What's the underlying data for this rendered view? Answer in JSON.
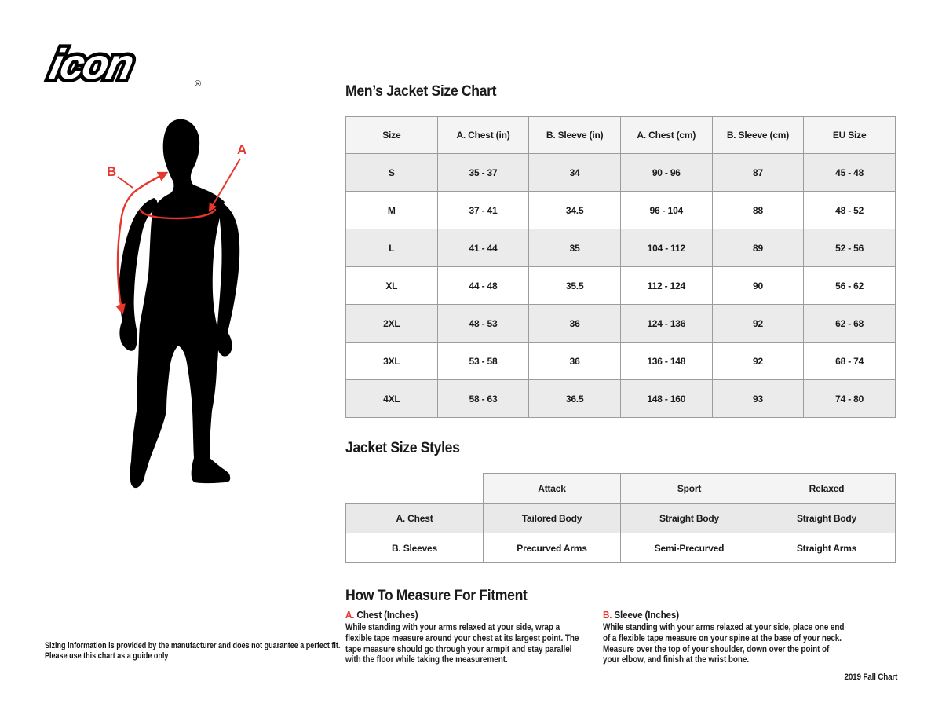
{
  "branding": {
    "logo_text": "icon",
    "registered_mark": "®"
  },
  "figure": {
    "label_a": "A",
    "label_b": "B",
    "silhouette_color": "#000000",
    "measure_line_color": "#e8362c"
  },
  "size_chart": {
    "title": "Men’s Jacket Size Chart",
    "columns": [
      "Size",
      "A. Chest (in)",
      "B. Sleeve (in)",
      "A. Chest (cm)",
      "B. Sleeve (cm)",
      "EU Size"
    ],
    "rows": [
      [
        "S",
        "35 - 37",
        "34",
        "90 - 96",
        "87",
        "45 - 48"
      ],
      [
        "M",
        "37 - 41",
        "34.5",
        "96 - 104",
        "88",
        "48 - 52"
      ],
      [
        "L",
        "41 - 44",
        "35",
        "104 - 112",
        "89",
        "52 - 56"
      ],
      [
        "XL",
        "44 - 48",
        "35.5",
        "112 - 124",
        "90",
        "56 - 62"
      ],
      [
        "2XL",
        "48 - 53",
        "36",
        "124 - 136",
        "92",
        "62 - 68"
      ],
      [
        "3XL",
        "53 - 58",
        "36",
        "136 - 148",
        "92",
        "68 - 74"
      ],
      [
        "4XL",
        "58 - 63",
        "36.5",
        "148 - 160",
        "93",
        "74 - 80"
      ]
    ]
  },
  "styles_chart": {
    "title": "Jacket Size Styles",
    "columns": [
      "",
      "Attack",
      "Sport",
      "Relaxed"
    ],
    "rows": [
      [
        "A. Chest",
        "Tailored Body",
        "Straight Body",
        "Straight Body"
      ],
      [
        "B. Sleeves",
        "Precurved Arms",
        "Semi-Precurved",
        "Straight Arms"
      ]
    ]
  },
  "measure": {
    "title": "How To Measure For Fitment",
    "items": [
      {
        "letter": "A.",
        "label": "Chest (Inches)",
        "text": "While standing with your arms relaxed at your side, wrap a flexible tape measure around your chest at its largest point. The tape measure should go through your armpit and stay parallel with the floor while taking the measurement."
      },
      {
        "letter": "B.",
        "label": "Sleeve (Inches)",
        "text": "While standing with your arms relaxed at your side, place one end of a flexible tape measure on your spine at the base of your neck. Measure over the top of your shoulder, down over the point of your elbow, and finish at the wrist bone."
      }
    ]
  },
  "footer": {
    "disclaimer_line1": "Sizing information is provided by the manufacturer and does not guarantee a perfect fit.",
    "disclaimer_line2": "Please use this chart as a guide only",
    "chart_version": "2019 Fall Chart"
  },
  "colors": {
    "accent_red": "#e8362c",
    "table_border": "#9c9c9c",
    "header_bg": "#f4f4f4",
    "row_alt_bg": "#ebebeb",
    "styles_row_bg": "#e9e9e9"
  }
}
